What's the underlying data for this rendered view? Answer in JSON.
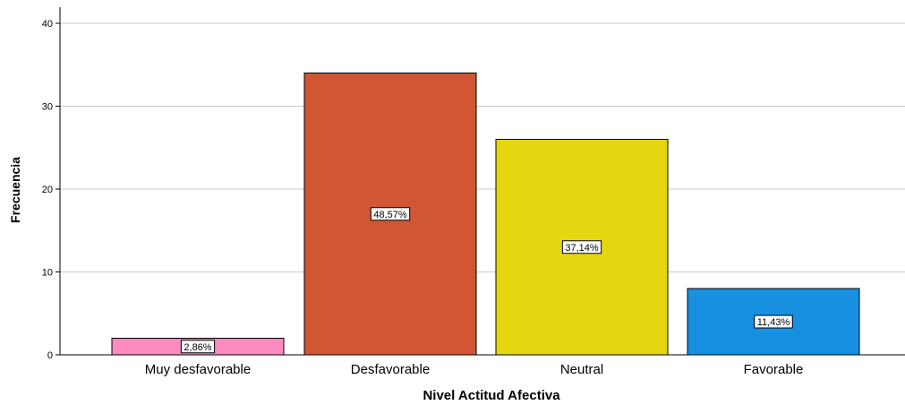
{
  "chart_data": {
    "type": "bar",
    "categories": [
      "Muy desfavorable",
      "Desfavorable",
      "Neutral",
      "Favorable"
    ],
    "values": [
      2,
      34,
      26,
      8
    ],
    "data_labels": [
      "2,86%",
      "48,57%",
      "37,14%",
      "11,43%"
    ],
    "colors": [
      "#fd8bbf",
      "#d05634",
      "#e4d70f",
      "#1790e2"
    ],
    "title": "",
    "xlabel": "Nivel Actitud Afectiva",
    "ylabel": "Frecuencia",
    "ylim": [
      0,
      40
    ],
    "yticks": [
      0,
      10,
      20,
      30,
      40
    ],
    "grid": true,
    "gridline_color": "#c8c8c8"
  }
}
